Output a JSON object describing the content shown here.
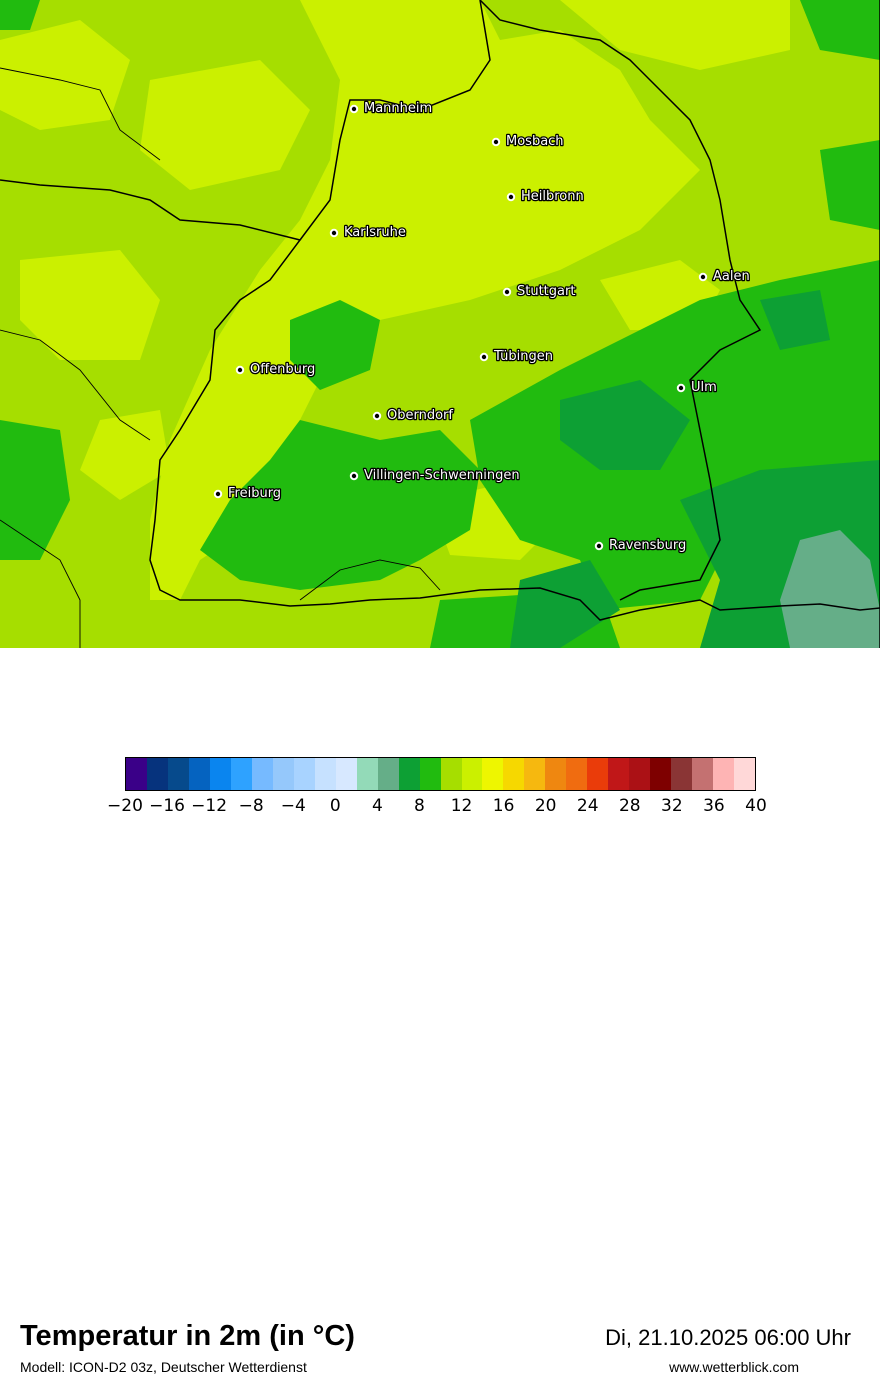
{
  "title": "Temperatur in 2m (in °C)",
  "model_source": "Modell: ICON-D2 03z, Deutscher Wetterdienst",
  "valid_time": "Di, 21.10.2025 06:00 Uhr",
  "website": "www.wetterblick.com",
  "cities": [
    {
      "name": "Mannheim"
    },
    {
      "name": "Mosbach"
    },
    {
      "name": "Heilbronn"
    },
    {
      "name": "Karlsruhe"
    },
    {
      "name": "Aalen"
    },
    {
      "name": "Stuttgart"
    },
    {
      "name": "Tübingen"
    },
    {
      "name": "Offenburg"
    },
    {
      "name": "Ulm"
    },
    {
      "name": "Oberndorf"
    },
    {
      "name": "Villingen-Schwenningen"
    },
    {
      "name": "Freiburg"
    },
    {
      "name": "Ravensburg"
    }
  ],
  "legend": {
    "colors": [
      "#3a0088",
      "#06337d",
      "#064a8c",
      "#0563c0",
      "#0a85ef",
      "#2ea2ff",
      "#76baff",
      "#95c8fb",
      "#a8d3ff",
      "#c6e1ff",
      "#d7e8ff",
      "#93dab8",
      "#65ae88",
      "#0da034",
      "#21bb0f",
      "#a6de00",
      "#cbf000",
      "#eef600",
      "#f6d800",
      "#f6b80f",
      "#ef8710",
      "#f06c10",
      "#ea3c0a",
      "#c01718",
      "#ab1115",
      "#7e0000",
      "#8a3535",
      "#c47171",
      "#feb4b4",
      "#ffd8d8"
    ],
    "ticks": [
      "−20",
      "−16",
      "−12",
      "−8",
      "−4",
      "0",
      "4",
      "8",
      "12",
      "16",
      "20",
      "24",
      "28",
      "32",
      "36",
      "40"
    ]
  }
}
